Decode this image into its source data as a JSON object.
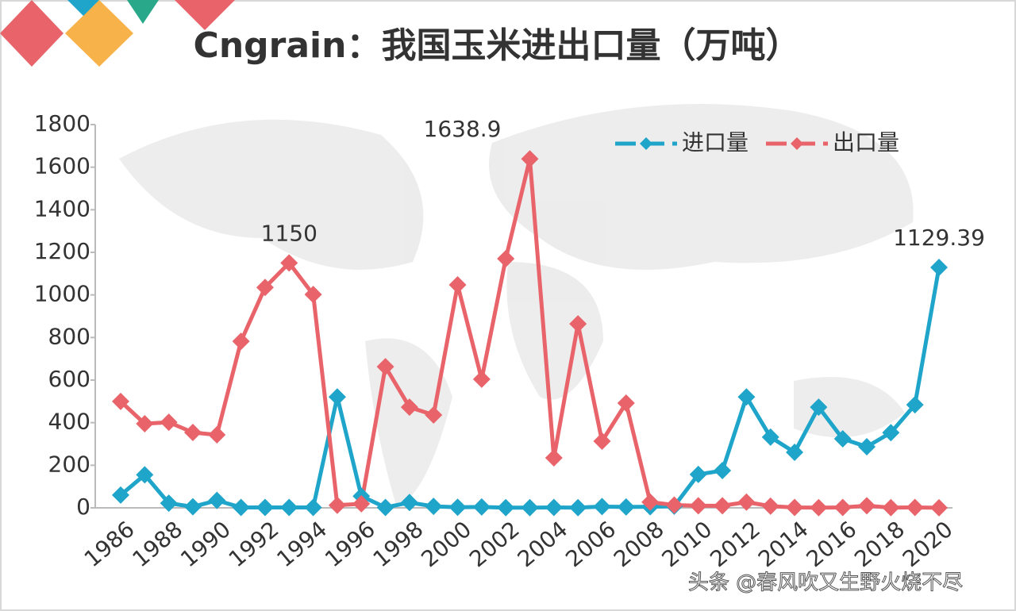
{
  "chart_data": {
    "type": "line",
    "title": "Cngrain：我国玉米进出口量（万吨）",
    "watermark": "头条 @春风吹又生野火烧不尽",
    "categories": [
      "1986",
      null,
      "1988",
      null,
      "1990",
      null,
      "1992",
      null,
      "1994",
      null,
      "1996",
      null,
      "1998",
      null,
      "2000",
      null,
      "2002",
      null,
      "2004",
      null,
      "2006",
      null,
      "2008",
      null,
      "2010",
      null,
      "2012",
      null,
      "2014",
      null,
      "2016",
      null,
      "2018",
      null,
      "2020"
    ],
    "series": [
      {
        "name": "进口量",
        "color": "#1ea5c9",
        "values": [
          60,
          155,
          22,
          5,
          35,
          2,
          2,
          2,
          2,
          521,
          55,
          2,
          25,
          7,
          3,
          4,
          1,
          1,
          2,
          1,
          6,
          4,
          5,
          8,
          157,
          175,
          521,
          332,
          261,
          473,
          324,
          287,
          353,
          484,
          1129.39
        ]
      },
      {
        "name": "出口量",
        "color": "#e8646a",
        "values": [
          500,
          395,
          402,
          354,
          343,
          782,
          1035,
          1150,
          1002,
          12,
          19,
          663,
          473,
          436,
          1047,
          604,
          1170,
          1638.9,
          235,
          864,
          313,
          492,
          27,
          13,
          10,
          10,
          27,
          8,
          2,
          1,
          2,
          10,
          1,
          2,
          0.3
        ]
      }
    ],
    "labelled_points": [
      [
        1,
        7
      ],
      [
        1,
        17
      ],
      [
        0,
        34
      ]
    ],
    "ylim": [
      0,
      1800
    ],
    "yticks": [
      0,
      200,
      400,
      600,
      800,
      1000,
      1200,
      1400,
      1600,
      1800
    ],
    "legend": "top-right"
  }
}
